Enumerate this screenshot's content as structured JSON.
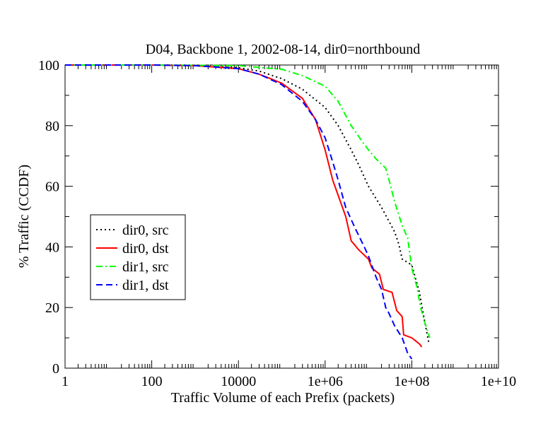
{
  "chart_data": {
    "type": "line",
    "title": "D04, Backbone 1, 2002-08-14, dir0=northbound",
    "xlabel": "Traffic Volume of each Prefix (packets)",
    "ylabel": "% Traffic (CCDF)",
    "xscale": "log",
    "xlim": [
      1,
      10000000000
    ],
    "ylim": [
      0,
      100
    ],
    "x_ticks": [
      1,
      100,
      10000,
      1000000,
      100000000,
      10000000000
    ],
    "x_tick_labels": [
      "1",
      "100",
      "10000",
      "1e+06",
      "1e+08",
      "1e+10"
    ],
    "y_ticks": [
      0,
      20,
      40,
      60,
      80,
      100
    ],
    "y_tick_labels": [
      "0",
      "20",
      "40",
      "60",
      "80",
      "100"
    ],
    "grid": false,
    "legend_position": "lower-left",
    "series": [
      {
        "name": "dir0, src",
        "color": "#000000",
        "dash": "dotted",
        "points": [
          [
            1,
            100
          ],
          [
            100,
            100
          ],
          [
            1000,
            99.9
          ],
          [
            10000,
            99.1
          ],
          [
            30000,
            98
          ],
          [
            100000,
            95.5
          ],
          [
            300000,
            92
          ],
          [
            1000000,
            86
          ],
          [
            2000000,
            80
          ],
          [
            4000000,
            72
          ],
          [
            6000000,
            67
          ],
          [
            10000000,
            60
          ],
          [
            20000000,
            53
          ],
          [
            40000000,
            45
          ],
          [
            50000000,
            41
          ],
          [
            60000000,
            36
          ],
          [
            100000000,
            34
          ],
          [
            150000000,
            25
          ],
          [
            200000000,
            15
          ],
          [
            250000000,
            8
          ]
        ]
      },
      {
        "name": "dir0, dst",
        "color": "#ff0000",
        "dash": "solid",
        "points": [
          [
            1,
            100
          ],
          [
            100,
            100
          ],
          [
            1000,
            99.8
          ],
          [
            10000,
            98.8
          ],
          [
            30000,
            97
          ],
          [
            100000,
            94
          ],
          [
            300000,
            89
          ],
          [
            600000,
            82
          ],
          [
            1000000,
            72
          ],
          [
            1500000,
            62
          ],
          [
            2000000,
            57
          ],
          [
            3000000,
            50
          ],
          [
            4000000,
            42
          ],
          [
            6000000,
            39
          ],
          [
            10000000,
            36
          ],
          [
            12000000,
            33
          ],
          [
            18000000,
            31
          ],
          [
            22000000,
            26
          ],
          [
            35000000,
            25
          ],
          [
            45000000,
            19
          ],
          [
            60000000,
            17
          ],
          [
            65000000,
            11
          ],
          [
            100000000,
            10
          ],
          [
            150000000,
            8
          ],
          [
            170000000,
            7
          ]
        ]
      },
      {
        "name": "dir1, src",
        "color": "#00ff00",
        "dash": "dashdot",
        "points": [
          [
            1,
            100
          ],
          [
            100,
            100
          ],
          [
            10000,
            99.8
          ],
          [
            100000,
            98.6
          ],
          [
            300000,
            96.5
          ],
          [
            1000000,
            93
          ],
          [
            2000000,
            88
          ],
          [
            4000000,
            80
          ],
          [
            7000000,
            75
          ],
          [
            10000000,
            72
          ],
          [
            15000000,
            69
          ],
          [
            25000000,
            66
          ],
          [
            30000000,
            62
          ],
          [
            40000000,
            55
          ],
          [
            60000000,
            47
          ],
          [
            80000000,
            43
          ],
          [
            100000000,
            33
          ],
          [
            130000000,
            27
          ],
          [
            160000000,
            20
          ],
          [
            200000000,
            15
          ],
          [
            260000000,
            10
          ]
        ]
      },
      {
        "name": "dir1, dst",
        "color": "#0000ff",
        "dash": "dashed",
        "points": [
          [
            1,
            100
          ],
          [
            100,
            100
          ],
          [
            1000,
            99.8
          ],
          [
            10000,
            98.8
          ],
          [
            30000,
            97
          ],
          [
            100000,
            93.5
          ],
          [
            300000,
            88
          ],
          [
            600000,
            82
          ],
          [
            1000000,
            76
          ],
          [
            1500000,
            68
          ],
          [
            2000000,
            62
          ],
          [
            3000000,
            53
          ],
          [
            5000000,
            46
          ],
          [
            8000000,
            40
          ],
          [
            10000000,
            37
          ],
          [
            15000000,
            30
          ],
          [
            20000000,
            26
          ],
          [
            25000000,
            20
          ],
          [
            30000000,
            18
          ],
          [
            40000000,
            14
          ],
          [
            60000000,
            10
          ],
          [
            80000000,
            5
          ],
          [
            100000000,
            3
          ]
        ]
      }
    ]
  }
}
